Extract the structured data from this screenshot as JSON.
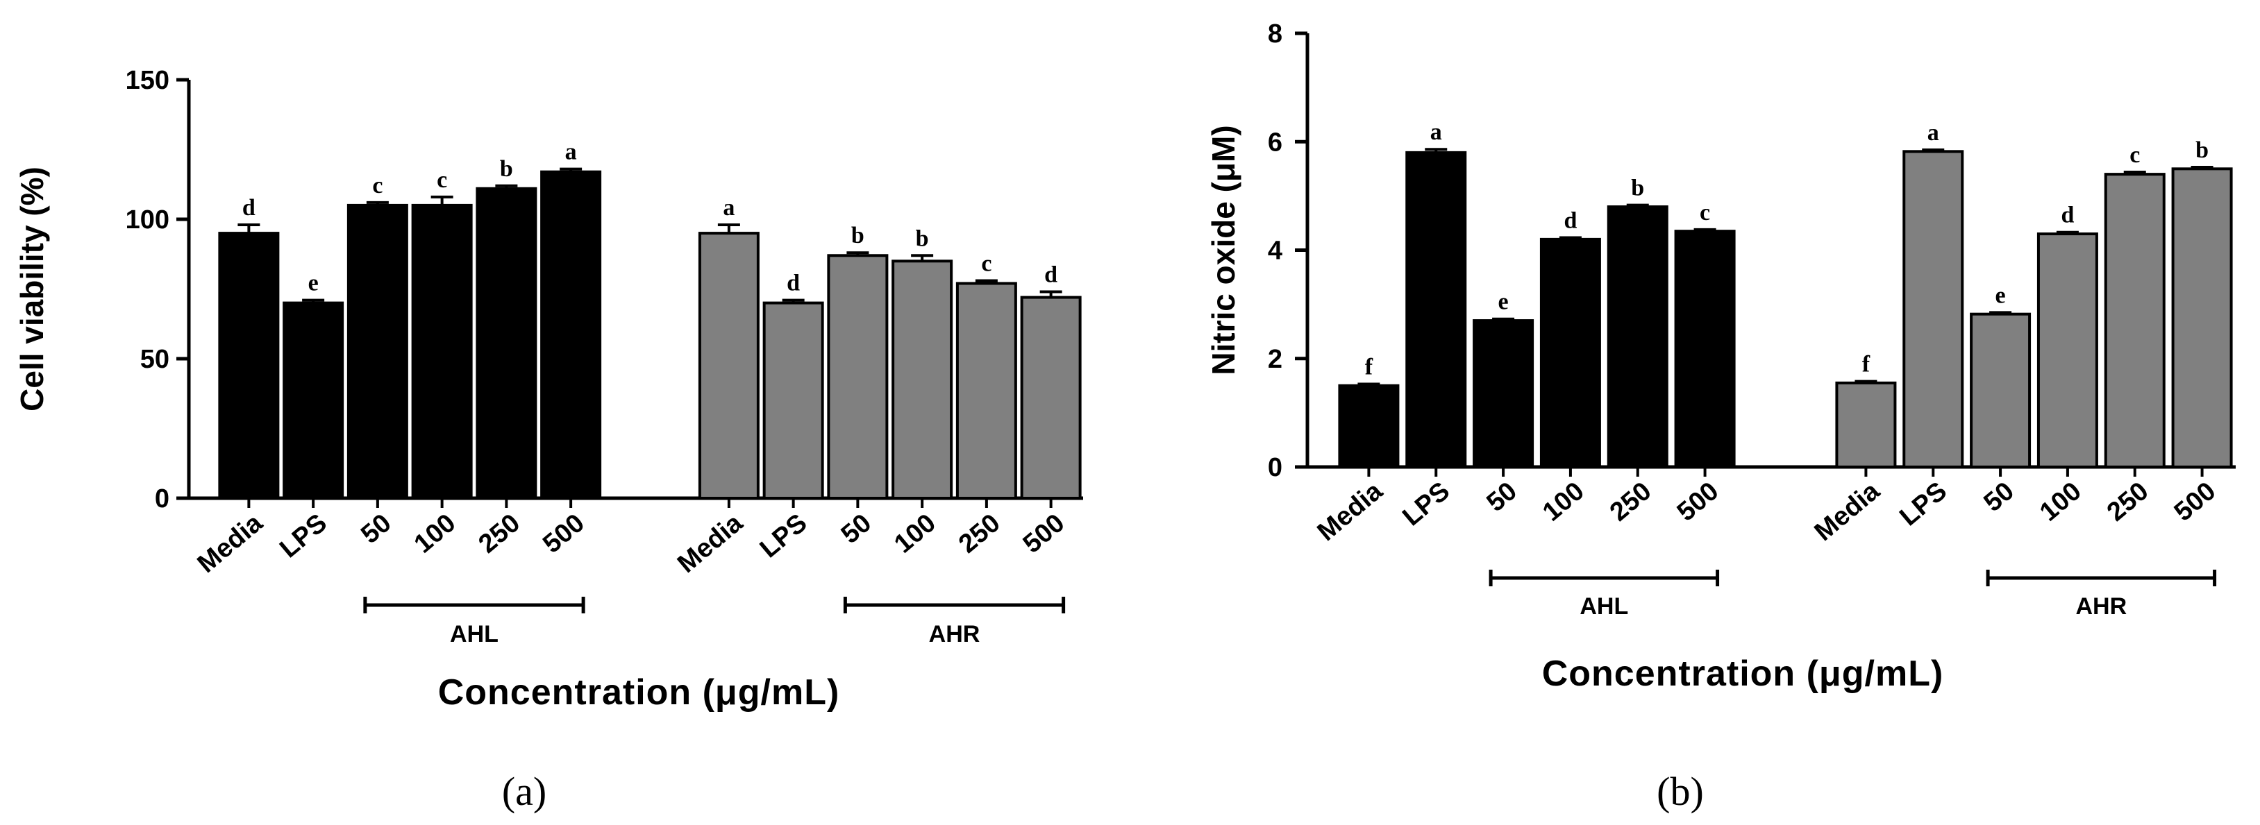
{
  "colors": {
    "ahl": "#000000",
    "ahr": "#808080",
    "axis": "#000000"
  },
  "chart_data": [
    {
      "type": "bar",
      "panel": "(a)",
      "title": "",
      "ylabel": "Cell viability (%)",
      "xlabel": "Concentration (μg/mL)",
      "ylim": [
        0,
        150
      ],
      "yticks": [
        0,
        50,
        100,
        150
      ],
      "grid": false,
      "categories": [
        "Media",
        "LPS",
        "50",
        "100",
        "250",
        "500",
        "Media",
        "LPS",
        "50",
        "100",
        "250",
        "500"
      ],
      "groups": [
        {
          "label": "AHL",
          "start": 2,
          "end": 5
        },
        {
          "label": "AHR",
          "start": 8,
          "end": 11
        }
      ],
      "series": [
        {
          "name": "AHL",
          "color": "#000000",
          "indices": [
            0,
            1,
            2,
            3,
            4,
            5
          ]
        },
        {
          "name": "AHR",
          "color": "#808080",
          "indices": [
            6,
            7,
            8,
            9,
            10,
            11
          ]
        }
      ],
      "values": [
        95,
        70,
        105,
        105,
        111,
        117,
        95,
        70,
        87,
        85,
        77,
        72
      ],
      "errors": [
        3,
        1,
        1,
        3,
        1,
        1,
        3,
        1,
        1,
        2,
        1,
        2
      ],
      "significance": [
        "d",
        "e",
        "c",
        "c",
        "b",
        "a",
        "a",
        "d",
        "b",
        "b",
        "c",
        "d"
      ]
    },
    {
      "type": "bar",
      "panel": "(b)",
      "title": "",
      "ylabel": "Nitric oxide (μM)",
      "xlabel": "Concentration (μg/mL)",
      "ylim": [
        0,
        8
      ],
      "yticks": [
        0,
        2,
        4,
        6,
        8
      ],
      "grid": false,
      "categories": [
        "Media",
        "LPS",
        "50",
        "100",
        "250",
        "500",
        "Media",
        "LPS",
        "50",
        "100",
        "250",
        "500"
      ],
      "groups": [
        {
          "label": "AHL",
          "start": 2,
          "end": 5
        },
        {
          "label": "AHR",
          "start": 8,
          "end": 11
        }
      ],
      "series": [
        {
          "name": "AHL",
          "color": "#000000",
          "indices": [
            0,
            1,
            2,
            3,
            4,
            5
          ]
        },
        {
          "name": "AHR",
          "color": "#808080",
          "indices": [
            6,
            7,
            8,
            9,
            10,
            11
          ]
        }
      ],
      "values": [
        1.5,
        5.8,
        2.7,
        4.2,
        4.8,
        4.35,
        1.55,
        5.82,
        2.82,
        4.3,
        5.4,
        5.5
      ],
      "errors": [
        0.03,
        0.06,
        0.03,
        0.03,
        0.03,
        0.03,
        0.03,
        0.03,
        0.03,
        0.03,
        0.04,
        0.03
      ],
      "significance": [
        "f",
        "a",
        "e",
        "d",
        "b",
        "c",
        "f",
        "a",
        "e",
        "d",
        "c",
        "b"
      ]
    }
  ]
}
